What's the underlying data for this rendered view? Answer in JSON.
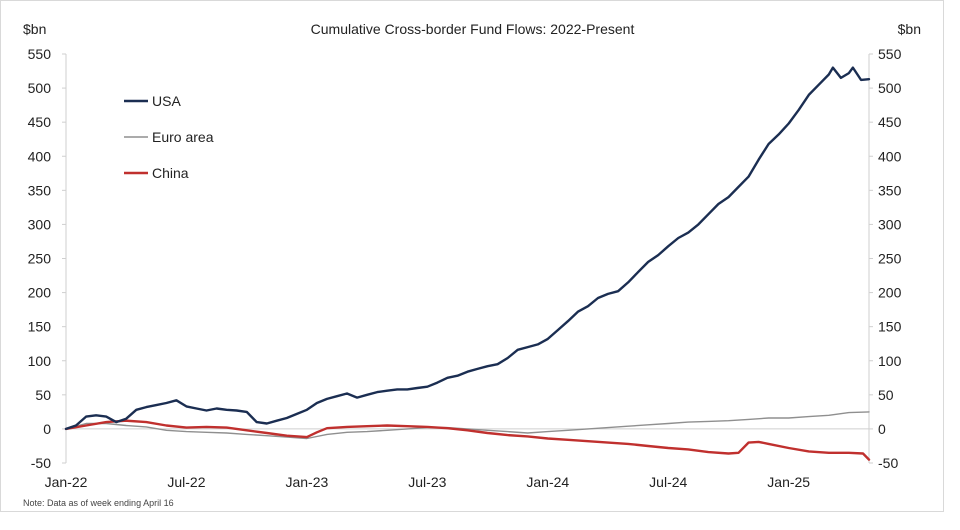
{
  "chart_data": {
    "type": "line",
    "title": "Cumulative Cross-border Fund Flows: 2022-Present",
    "unit_left": "$bn",
    "unit_right": "$bn",
    "note": "Note: Data as of week ending April 16",
    "ylim": [
      -50,
      550
    ],
    "y_ticks": [
      550,
      500,
      450,
      400,
      350,
      300,
      250,
      200,
      150,
      100,
      50,
      0,
      -50
    ],
    "x_range_months": [
      0,
      40
    ],
    "x_ticks": [
      {
        "label": "Jan-22",
        "month": 0
      },
      {
        "label": "Jul-22",
        "month": 6
      },
      {
        "label": "Jan-23",
        "month": 12
      },
      {
        "label": "Jul-23",
        "month": 18
      },
      {
        "label": "Jan-24",
        "month": 24
      },
      {
        "label": "Jul-24",
        "month": 30
      },
      {
        "label": "Jan-25",
        "month": 36
      }
    ],
    "series": [
      {
        "name": "USA",
        "color": "#1b2e52",
        "points": [
          [
            0,
            0
          ],
          [
            0.5,
            5
          ],
          [
            1,
            18
          ],
          [
            1.5,
            20
          ],
          [
            2,
            18
          ],
          [
            2.5,
            10
          ],
          [
            3,
            15
          ],
          [
            3.5,
            28
          ],
          [
            4,
            32
          ],
          [
            4.5,
            35
          ],
          [
            5,
            38
          ],
          [
            5.5,
            42
          ],
          [
            6,
            33
          ],
          [
            6.5,
            30
          ],
          [
            7,
            27
          ],
          [
            7.5,
            30
          ],
          [
            8,
            28
          ],
          [
            8.5,
            27
          ],
          [
            9,
            25
          ],
          [
            9.5,
            10
          ],
          [
            10,
            8
          ],
          [
            10.5,
            12
          ],
          [
            11,
            16
          ],
          [
            11.5,
            22
          ],
          [
            12,
            28
          ],
          [
            12.5,
            38
          ],
          [
            13,
            44
          ],
          [
            13.5,
            48
          ],
          [
            14,
            52
          ],
          [
            14.5,
            46
          ],
          [
            15,
            50
          ],
          [
            15.5,
            54
          ],
          [
            16,
            56
          ],
          [
            16.5,
            58
          ],
          [
            17,
            58
          ],
          [
            17.5,
            60
          ],
          [
            18,
            62
          ],
          [
            18.5,
            68
          ],
          [
            19,
            75
          ],
          [
            19.5,
            78
          ],
          [
            20,
            84
          ],
          [
            20.5,
            88
          ],
          [
            21,
            92
          ],
          [
            21.5,
            95
          ],
          [
            22,
            104
          ],
          [
            22.5,
            116
          ],
          [
            23,
            120
          ],
          [
            23.5,
            124
          ],
          [
            24,
            132
          ],
          [
            24.5,
            145
          ],
          [
            25,
            158
          ],
          [
            25.5,
            172
          ],
          [
            26,
            180
          ],
          [
            26.5,
            192
          ],
          [
            27,
            198
          ],
          [
            27.5,
            202
          ],
          [
            28,
            215
          ],
          [
            28.5,
            230
          ],
          [
            29,
            245
          ],
          [
            29.5,
            255
          ],
          [
            30,
            268
          ],
          [
            30.5,
            280
          ],
          [
            31,
            288
          ],
          [
            31.5,
            300
          ],
          [
            32,
            315
          ],
          [
            32.5,
            330
          ],
          [
            33,
            340
          ],
          [
            33.5,
            355
          ],
          [
            34,
            370
          ],
          [
            34.5,
            395
          ],
          [
            35,
            418
          ],
          [
            35.5,
            432
          ],
          [
            36,
            448
          ],
          [
            36.5,
            468
          ],
          [
            37,
            490
          ],
          [
            37.5,
            505
          ],
          [
            38,
            520
          ],
          [
            38.2,
            530
          ],
          [
            38.6,
            515
          ],
          [
            39,
            522
          ],
          [
            39.2,
            530
          ],
          [
            39.6,
            512
          ],
          [
            40,
            513
          ]
        ]
      },
      {
        "name": "Euro area",
        "color": "#8f8f8f",
        "points": [
          [
            0,
            0
          ],
          [
            1,
            8
          ],
          [
            2,
            8
          ],
          [
            3,
            5
          ],
          [
            4,
            3
          ],
          [
            5,
            -2
          ],
          [
            6,
            -4
          ],
          [
            7,
            -5
          ],
          [
            8,
            -6
          ],
          [
            9,
            -8
          ],
          [
            10,
            -10
          ],
          [
            11,
            -12
          ],
          [
            12,
            -14
          ],
          [
            13,
            -8
          ],
          [
            14,
            -5
          ],
          [
            15,
            -4
          ],
          [
            16,
            -2
          ],
          [
            17,
            0
          ],
          [
            18,
            2
          ],
          [
            19,
            2
          ],
          [
            20,
            0
          ],
          [
            21,
            -2
          ],
          [
            22,
            -4
          ],
          [
            23,
            -6
          ],
          [
            24,
            -4
          ],
          [
            25,
            -2
          ],
          [
            26,
            0
          ],
          [
            27,
            2
          ],
          [
            28,
            4
          ],
          [
            29,
            6
          ],
          [
            30,
            8
          ],
          [
            31,
            10
          ],
          [
            32,
            11
          ],
          [
            33,
            12
          ],
          [
            34,
            14
          ],
          [
            35,
            16
          ],
          [
            36,
            16
          ],
          [
            37,
            18
          ],
          [
            38,
            20
          ],
          [
            39,
            24
          ],
          [
            40,
            25
          ]
        ]
      },
      {
        "name": "China",
        "color": "#c0302e",
        "points": [
          [
            0,
            0
          ],
          [
            1,
            5
          ],
          [
            2,
            10
          ],
          [
            3,
            12
          ],
          [
            4,
            10
          ],
          [
            5,
            5
          ],
          [
            6,
            2
          ],
          [
            7,
            3
          ],
          [
            8,
            2
          ],
          [
            9,
            -2
          ],
          [
            10,
            -6
          ],
          [
            11,
            -10
          ],
          [
            12,
            -12
          ],
          [
            12.5,
            -5
          ],
          [
            13,
            1
          ],
          [
            14,
            3
          ],
          [
            15,
            4
          ],
          [
            16,
            5
          ],
          [
            17,
            4
          ],
          [
            18,
            3
          ],
          [
            19,
            1
          ],
          [
            20,
            -2
          ],
          [
            21,
            -6
          ],
          [
            22,
            -9
          ],
          [
            23,
            -11
          ],
          [
            24,
            -14
          ],
          [
            25,
            -16
          ],
          [
            26,
            -18
          ],
          [
            27,
            -20
          ],
          [
            28,
            -22
          ],
          [
            29,
            -25
          ],
          [
            30,
            -28
          ],
          [
            31,
            -30
          ],
          [
            32,
            -34
          ],
          [
            33,
            -36
          ],
          [
            33.5,
            -35
          ],
          [
            34,
            -20
          ],
          [
            34.5,
            -19
          ],
          [
            35,
            -22
          ],
          [
            36,
            -28
          ],
          [
            37,
            -33
          ],
          [
            38,
            -35
          ],
          [
            39,
            -35
          ],
          [
            39.7,
            -36
          ],
          [
            40,
            -45
          ]
        ]
      }
    ]
  }
}
